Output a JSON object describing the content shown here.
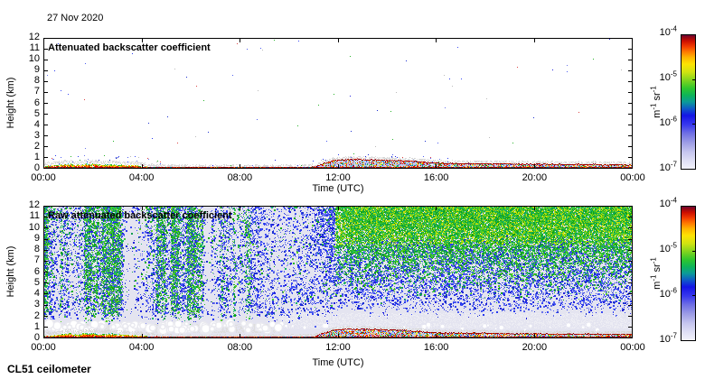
{
  "figure": {
    "date_label": "27 Nov 2020",
    "instrument_label": "CL51 ceilometer",
    "background": "#ffffff"
  },
  "colorbar": {
    "tick_base": "10",
    "tick_exponents": [
      "-4",
      "-5",
      "-6",
      "-7"
    ],
    "unit": "m^-1 sr^-1",
    "unit_parts": [
      {
        "text": "m"
      },
      {
        "sup": "-1"
      },
      {
        "text": " sr"
      },
      {
        "sup": "-1"
      }
    ]
  },
  "colormap": {
    "scale": "logarithmic",
    "min": "1e-7",
    "max": "1e-4",
    "stops": [
      [
        0.0,
        "#f4f4fc"
      ],
      [
        0.06,
        "#e2e2f6"
      ],
      [
        0.13,
        "#c6c6ef"
      ],
      [
        0.2,
        "#9d9de6"
      ],
      [
        0.27,
        "#6e6ee4"
      ],
      [
        0.33,
        "#3a3aee"
      ],
      [
        0.4,
        "#1414e6"
      ],
      [
        0.45,
        "#0f59c8"
      ],
      [
        0.5,
        "#0b9b99"
      ],
      [
        0.55,
        "#0eb458"
      ],
      [
        0.6,
        "#2ec62e"
      ],
      [
        0.66,
        "#7fd41f"
      ],
      [
        0.72,
        "#cfe312"
      ],
      [
        0.78,
        "#fde303"
      ],
      [
        0.83,
        "#ffb400"
      ],
      [
        0.87,
        "#ff7a00"
      ],
      [
        0.91,
        "#f23c00"
      ],
      [
        0.95,
        "#cc0f00"
      ],
      [
        0.98,
        "#8e0718"
      ],
      [
        1.0,
        "#57064f"
      ]
    ]
  },
  "chart_data": [
    {
      "type": "heatmap",
      "title": "Attenuated backscatter coefficient",
      "xlabel": "Time (UTC)",
      "ylabel": "Height (km)",
      "x_tick_labels": [
        "00:00",
        "04:00",
        "08:00",
        "12:00",
        "16:00",
        "20:00",
        "00:00"
      ],
      "y_tick_labels": [
        "0",
        "1",
        "2",
        "3",
        "4",
        "5",
        "6",
        "7",
        "8",
        "9",
        "10",
        "11",
        "12"
      ],
      "xlim_hours": [
        0,
        24
      ],
      "ylim_km": [
        0,
        12
      ],
      "colorbar_range": [
        "1e-7",
        "1e-4"
      ],
      "colorbar_unit": "m^-1 sr^-1",
      "summary": "Processed backscatter: clear white air above ~1 km all day. Patchy multicoloured aerosol returns up to ~0.6 km from 00:00-04:30, a very thin red surface film ~04:30-11:30, then a mixed layer capped by a dark-red line rising to ~0.9 km near 12:00-14:00 and settling to ~0.4-0.5 km through the evening."
    },
    {
      "type": "heatmap",
      "title": "Raw attenuated backscatter coefficient",
      "xlabel": "Time (UTC)",
      "ylabel": "Height (km)",
      "x_tick_labels": [
        "00:00",
        "04:00",
        "08:00",
        "12:00",
        "16:00",
        "20:00",
        "00:00"
      ],
      "y_tick_labels": [
        "0",
        "1",
        "2",
        "3",
        "4",
        "5",
        "6",
        "7",
        "8",
        "9",
        "10",
        "11",
        "12"
      ],
      "xlim_hours": [
        0,
        24
      ],
      "ylim_km": [
        0,
        12
      ],
      "colorbar_range": [
        "1e-7",
        "1e-4"
      ],
      "colorbar_unit": "m^-1 sr^-1",
      "summary": "Raw signal with background noise: vertical green/blue noise streaks fill the free troposphere before ~09:00, a quieter speckled period ~09:00-11:00, then a smooth green(top)-to-blue(middle) noise gradient after ~11:00. A whiter low-noise band with small white cloud puffs sits near 1-2.5 km, above the same surface aerosol layer seen in the processed panel."
    }
  ],
  "boundary_layer_km": {
    "t_hours": [
      0,
      0.6,
      1.0,
      1.3,
      1.6,
      2.0,
      2.4,
      2.8,
      3.2,
      3.6,
      4.0,
      4.4,
      4.8,
      5.5,
      6.5,
      7.5,
      8.5,
      9.5,
      10.5,
      11.0,
      11.4,
      11.8,
      12.3,
      13.0,
      13.8,
      14.5,
      15.2,
      16.0,
      17.0,
      18.0,
      19.0,
      20.0,
      21.0,
      22.0,
      23.0,
      24.0
    ],
    "top_km": [
      0.3,
      0.42,
      0.55,
      0.42,
      0.52,
      0.58,
      0.45,
      0.52,
      0.42,
      0.38,
      0.32,
      0.2,
      0.14,
      0.12,
      0.1,
      0.1,
      0.1,
      0.12,
      0.13,
      0.18,
      0.5,
      0.78,
      0.88,
      0.86,
      0.82,
      0.78,
      0.68,
      0.56,
      0.5,
      0.5,
      0.46,
      0.47,
      0.42,
      0.43,
      0.4,
      0.38
    ]
  },
  "render_params": {
    "seed": 20201127,
    "raw_base_color": "#e4e4f0",
    "regions": {
      "streaky_end_hour": 8.8,
      "quiet_end_hour": 10.9
    },
    "palette": {
      "blues": [
        "#2a3bee",
        "#2222dd",
        "#4d5df0",
        "#1b2fd0",
        "#6a74ea",
        "#3a4af5"
      ],
      "greens": [
        "#28b428",
        "#11a511",
        "#3fc93f",
        "#0f9f4f",
        "#57cf1c",
        "#16b36a"
      ],
      "yellow_green": "#c9e007",
      "surface_confetti": [
        "#e00000",
        "#ff6a00",
        "#ffd000",
        "#fff200",
        "#28b428",
        "#2a3bee",
        "#ffffff",
        "#12a45a",
        "#8b0000",
        "#ff2d00",
        "#d8d8d8",
        "#2bb4c8"
      ],
      "cap_red": "#9b0000",
      "fringe_gray": "#d9d9d9",
      "haze_blue": "#bcc4f0",
      "cloud_white": "#ffffff",
      "strip_gray": "#dedede",
      "band_white": "#ededf4",
      "ground_reds": [
        "#a00000",
        "#d42400",
        "#7d0b0b"
      ]
    }
  }
}
